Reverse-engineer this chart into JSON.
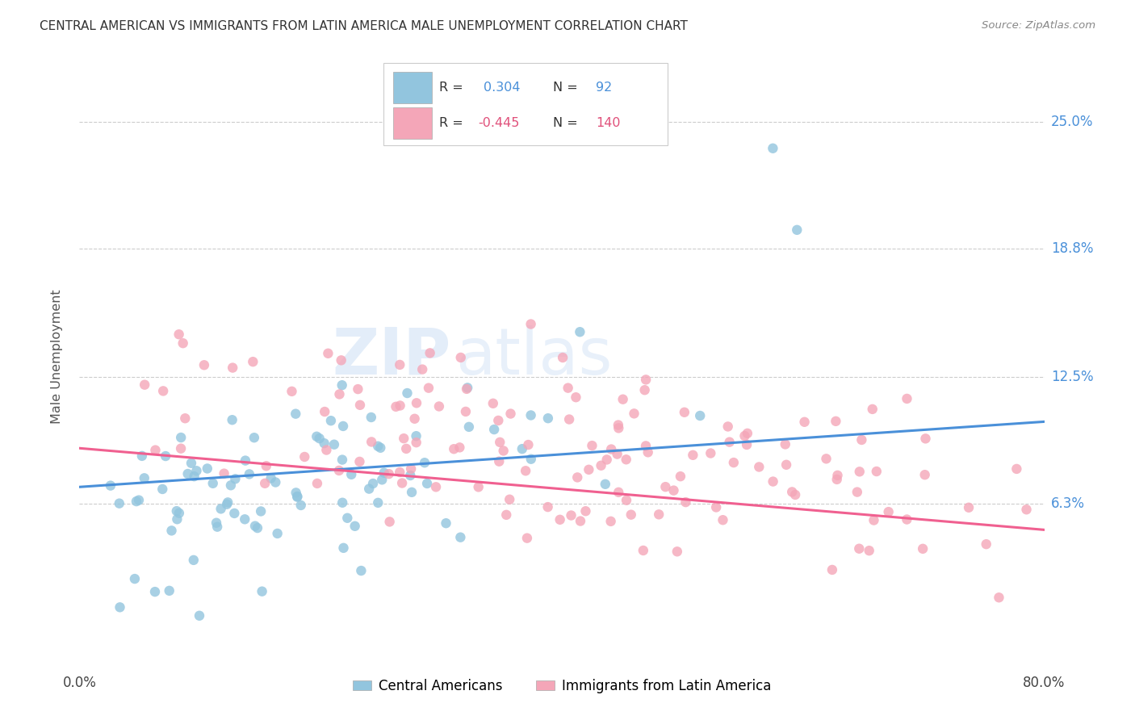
{
  "title": "CENTRAL AMERICAN VS IMMIGRANTS FROM LATIN AMERICA MALE UNEMPLOYMENT CORRELATION CHART",
  "source": "Source: ZipAtlas.com",
  "ylabel": "Male Unemployment",
  "ytick_labels": [
    "25.0%",
    "18.8%",
    "12.5%",
    "6.3%"
  ],
  "ytick_values": [
    0.25,
    0.188,
    0.125,
    0.063
  ],
  "xmin": 0.0,
  "xmax": 0.8,
  "ymin": -0.015,
  "ymax": 0.285,
  "color_blue": "#92c5de",
  "color_pink": "#f4a6b8",
  "color_blue_line": "#4a90d9",
  "color_pink_line": "#f06090",
  "color_blue_text": "#4a90d9",
  "color_pink_text": "#e0507a",
  "color_ytick": "#4a90d9",
  "watermark_zip": "ZIP",
  "watermark_atlas": "atlas",
  "seed": 42,
  "blue_n": 92,
  "pink_n": 140,
  "blue_r": 0.304,
  "pink_r": -0.445,
  "legend_label_blue": "Central Americans",
  "legend_label_pink": "Immigrants from Latin America",
  "blue_line_y0": 0.071,
  "blue_line_y1": 0.103,
  "pink_line_y0": 0.09,
  "pink_line_y1": 0.05
}
